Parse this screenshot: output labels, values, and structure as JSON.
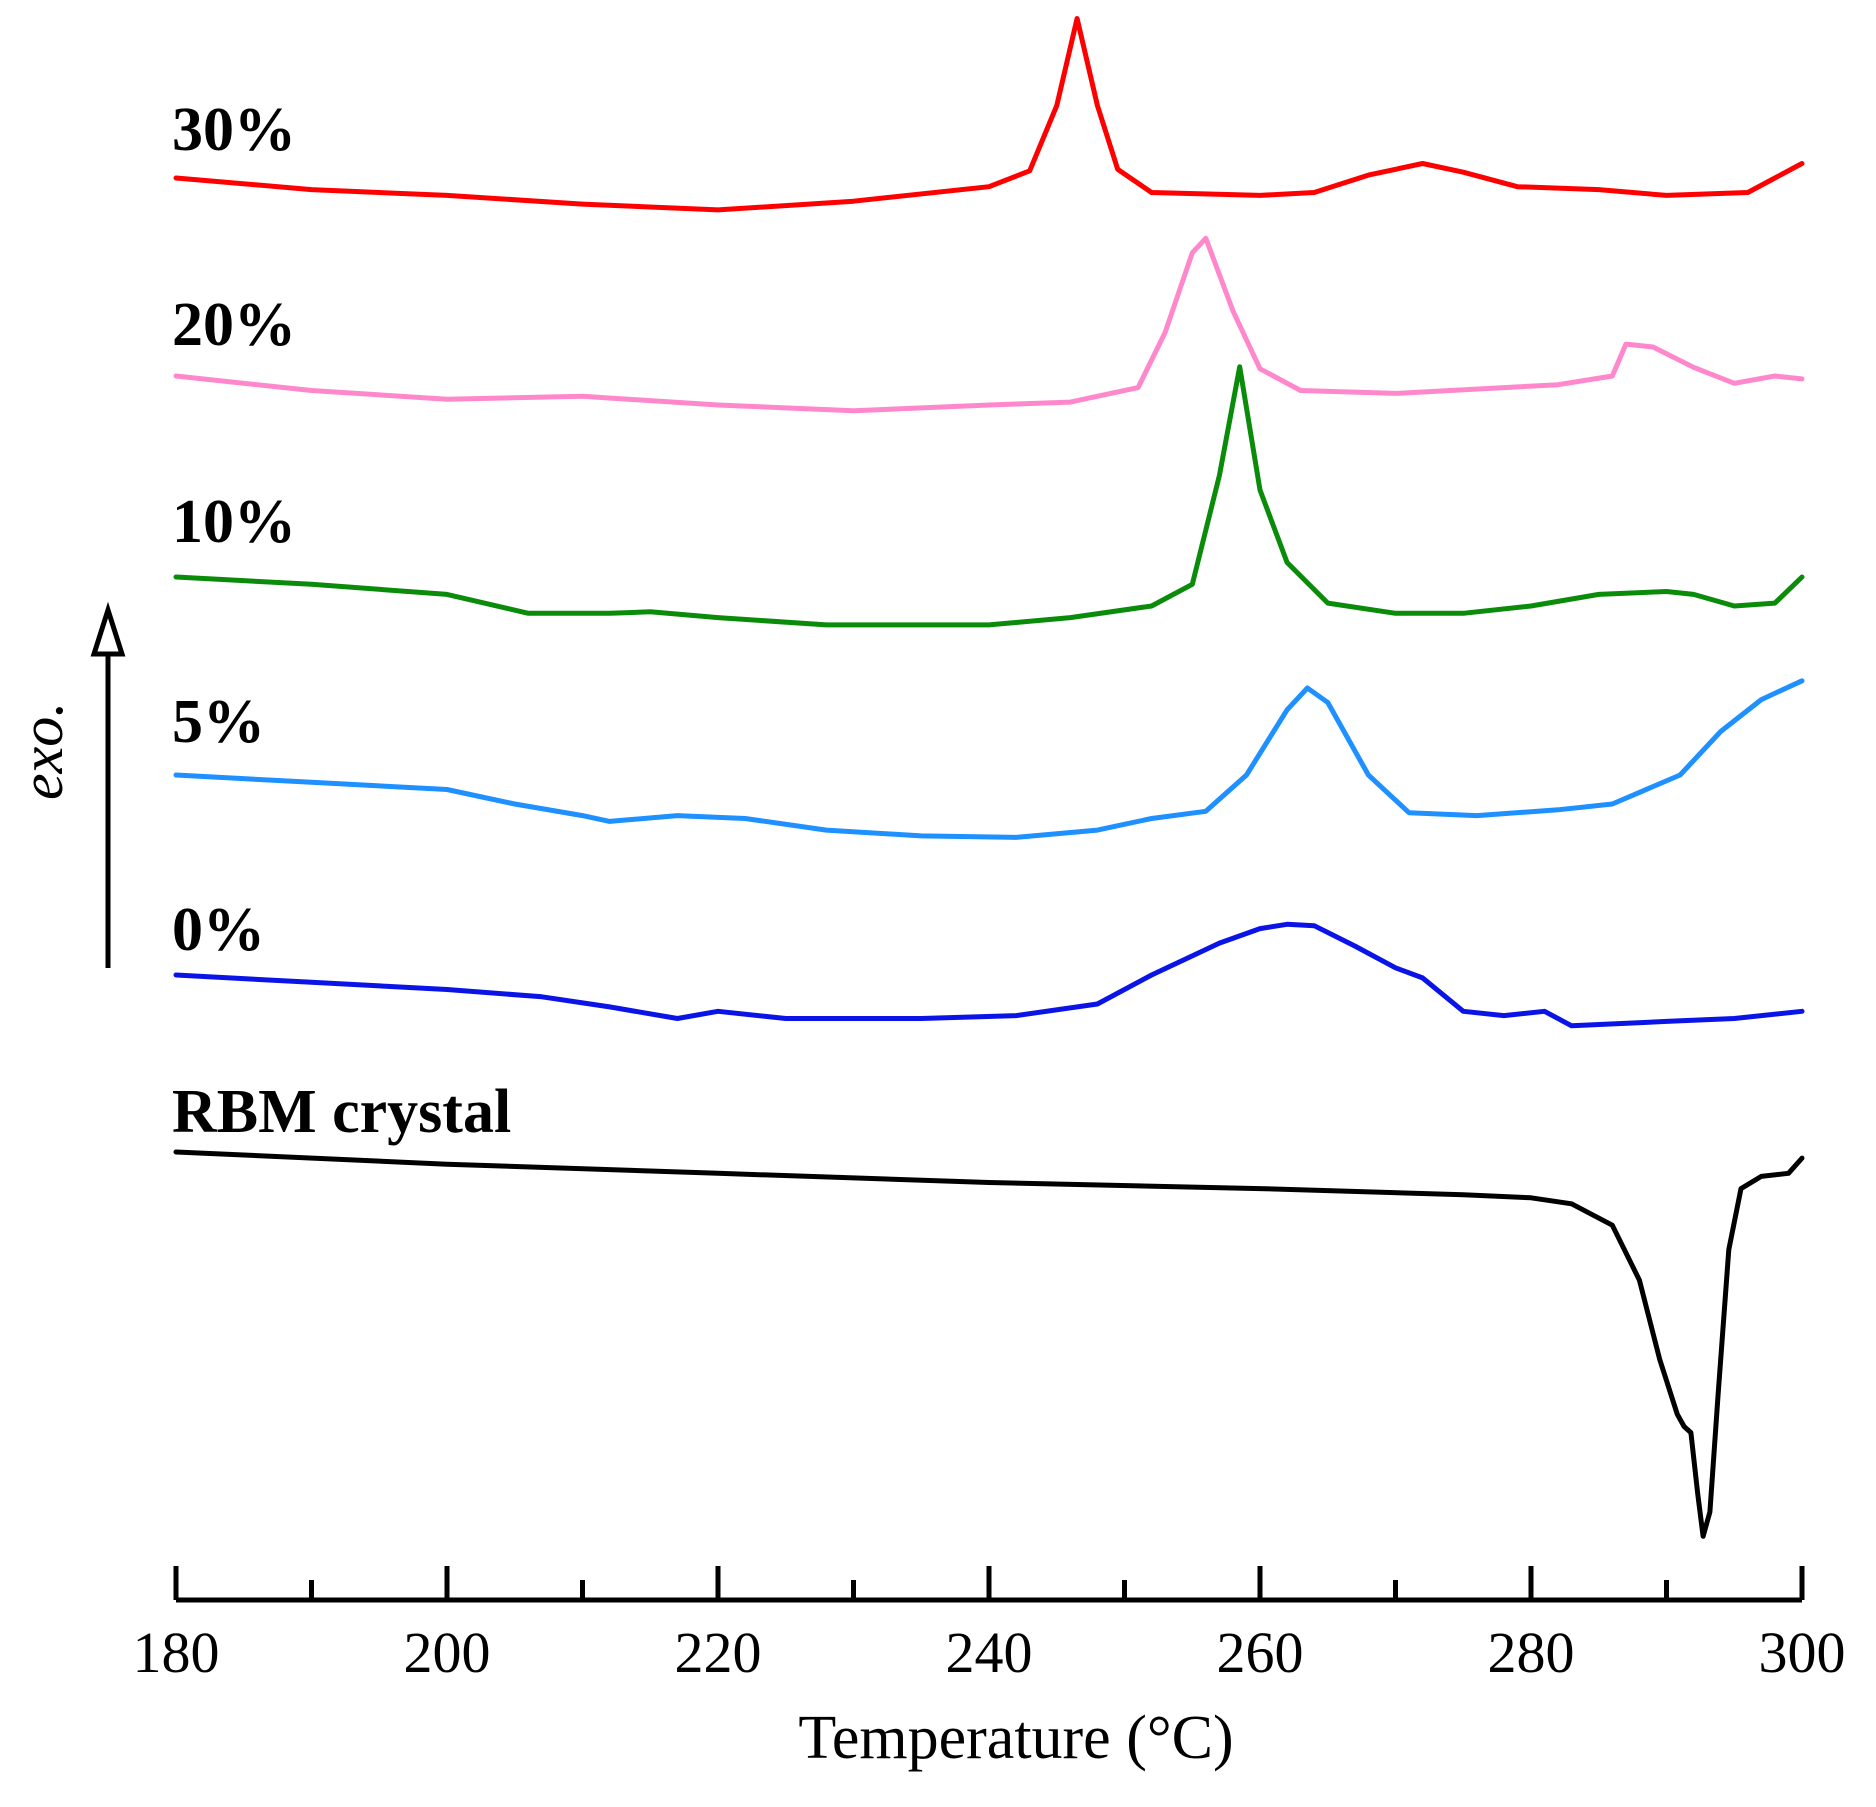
{
  "chart_data": {
    "type": "line",
    "title": "",
    "xlabel": "Temperature (°C)",
    "ylabel": "exo.",
    "xlim": [
      180,
      300
    ],
    "x_ticks_major": [
      180,
      200,
      220,
      240,
      260,
      280,
      300
    ],
    "x_ticks_minor": [
      190,
      210,
      230,
      250,
      270,
      290
    ],
    "x_tick_labels": [
      "180",
      "200",
      "220",
      "240",
      "260",
      "280",
      "300"
    ],
    "grid": false,
    "series": [
      {
        "name": "30%",
        "color": "#ff0000",
        "points": [
          [
            180,
            0.0
          ],
          [
            190,
            -0.08
          ],
          [
            200,
            -0.12
          ],
          [
            210,
            -0.18
          ],
          [
            220,
            -0.22
          ],
          [
            230,
            -0.16
          ],
          [
            240,
            -0.06
          ],
          [
            243,
            0.05
          ],
          [
            245,
            0.5
          ],
          [
            246.5,
            1.1
          ],
          [
            248,
            0.5
          ],
          [
            249.5,
            0.06
          ],
          [
            252,
            -0.1
          ],
          [
            260,
            -0.12
          ],
          [
            264,
            -0.1
          ],
          [
            268,
            0.02
          ],
          [
            272,
            0.1
          ],
          [
            275,
            0.04
          ],
          [
            279,
            -0.06
          ],
          [
            285,
            -0.08
          ],
          [
            290,
            -0.12
          ],
          [
            296,
            -0.1
          ],
          [
            298,
            0.0
          ],
          [
            300,
            0.1
          ]
        ]
      },
      {
        "name": "20%",
        "color": "#ff88cc",
        "points": [
          [
            180,
            0.0
          ],
          [
            190,
            -0.1
          ],
          [
            200,
            -0.16
          ],
          [
            210,
            -0.14
          ],
          [
            220,
            -0.2
          ],
          [
            230,
            -0.24
          ],
          [
            240,
            -0.2
          ],
          [
            246,
            -0.18
          ],
          [
            251,
            -0.08
          ],
          [
            253,
            0.3
          ],
          [
            255,
            0.85
          ],
          [
            256,
            0.95
          ],
          [
            258,
            0.45
          ],
          [
            260,
            0.05
          ],
          [
            263,
            -0.1
          ],
          [
            270,
            -0.12
          ],
          [
            278,
            -0.08
          ],
          [
            282,
            -0.06
          ],
          [
            286,
            0.0
          ],
          [
            287,
            0.22
          ],
          [
            289,
            0.2
          ],
          [
            292,
            0.06
          ],
          [
            295,
            -0.05
          ],
          [
            298,
            0.0
          ],
          [
            300,
            -0.02
          ]
        ]
      },
      {
        "name": "10%",
        "color": "#0a8c0a",
        "points": [
          [
            180,
            0.0
          ],
          [
            190,
            -0.05
          ],
          [
            200,
            -0.12
          ],
          [
            206,
            -0.25
          ],
          [
            212,
            -0.25
          ],
          [
            215,
            -0.24
          ],
          [
            220,
            -0.28
          ],
          [
            228,
            -0.33
          ],
          [
            240,
            -0.33
          ],
          [
            246,
            -0.28
          ],
          [
            252,
            -0.2
          ],
          [
            255,
            -0.05
          ],
          [
            257,
            0.7
          ],
          [
            258.5,
            1.45
          ],
          [
            260,
            0.6
          ],
          [
            262,
            0.1
          ],
          [
            265,
            -0.18
          ],
          [
            270,
            -0.25
          ],
          [
            275,
            -0.25
          ],
          [
            280,
            -0.2
          ],
          [
            285,
            -0.12
          ],
          [
            290,
            -0.1
          ],
          [
            292,
            -0.12
          ],
          [
            295,
            -0.2
          ],
          [
            298,
            -0.18
          ],
          [
            300,
            0.0
          ]
        ]
      },
      {
        "name": "5%",
        "color": "#1e90ff",
        "points": [
          [
            180,
            0.0
          ],
          [
            190,
            -0.05
          ],
          [
            200,
            -0.1
          ],
          [
            205,
            -0.2
          ],
          [
            210,
            -0.28
          ],
          [
            212,
            -0.32
          ],
          [
            217,
            -0.28
          ],
          [
            222,
            -0.3
          ],
          [
            228,
            -0.38
          ],
          [
            235,
            -0.42
          ],
          [
            242,
            -0.43
          ],
          [
            248,
            -0.38
          ],
          [
            252,
            -0.3
          ],
          [
            256,
            -0.25
          ],
          [
            259,
            0.0
          ],
          [
            262,
            0.45
          ],
          [
            263.5,
            0.6
          ],
          [
            265,
            0.5
          ],
          [
            268,
            0.0
          ],
          [
            271,
            -0.26
          ],
          [
            276,
            -0.28
          ],
          [
            282,
            -0.24
          ],
          [
            286,
            -0.2
          ],
          [
            288,
            -0.12
          ],
          [
            291,
            0.0
          ],
          [
            294,
            0.3
          ],
          [
            297,
            0.52
          ],
          [
            300,
            0.65
          ]
        ]
      },
      {
        "name": "0%",
        "color": "#0a14e6",
        "points": [
          [
            180,
            0.0
          ],
          [
            190,
            -0.05
          ],
          [
            200,
            -0.1
          ],
          [
            207,
            -0.15
          ],
          [
            212,
            -0.22
          ],
          [
            217,
            -0.3
          ],
          [
            220,
            -0.25
          ],
          [
            225,
            -0.3
          ],
          [
            235,
            -0.3
          ],
          [
            242,
            -0.28
          ],
          [
            248,
            -0.2
          ],
          [
            252,
            0.0
          ],
          [
            257,
            0.22
          ],
          [
            260,
            0.32
          ],
          [
            262,
            0.35
          ],
          [
            264,
            0.34
          ],
          [
            267,
            0.2
          ],
          [
            270,
            0.05
          ],
          [
            272,
            -0.02
          ],
          [
            275,
            -0.25
          ],
          [
            278,
            -0.28
          ],
          [
            281,
            -0.25
          ],
          [
            283,
            -0.35
          ],
          [
            290,
            -0.32
          ],
          [
            295,
            -0.3
          ],
          [
            300,
            -0.25
          ]
        ]
      },
      {
        "name": "RBM crystal",
        "color": "#000000",
        "points": [
          [
            180,
            0.0
          ],
          [
            200,
            -0.2
          ],
          [
            220,
            -0.35
          ],
          [
            240,
            -0.5
          ],
          [
            260,
            -0.6
          ],
          [
            275,
            -0.7
          ],
          [
            280,
            -0.75
          ],
          [
            283,
            -0.85
          ],
          [
            286,
            -1.2
          ],
          [
            288,
            -2.1
          ],
          [
            289.5,
            -3.4
          ],
          [
            290.8,
            -4.3
          ],
          [
            291.3,
            -4.5
          ],
          [
            291.8,
            -4.6
          ],
          [
            292.3,
            -5.6
          ],
          [
            292.7,
            -6.3
          ],
          [
            293.2,
            -5.9
          ],
          [
            293.8,
            -4.0
          ],
          [
            294.6,
            -1.6
          ],
          [
            295.5,
            -0.6
          ],
          [
            297,
            -0.4
          ],
          [
            299,
            -0.35
          ],
          [
            300,
            -0.1
          ]
        ]
      }
    ]
  },
  "labels": {
    "s30": "30%",
    "s20": "20%",
    "s10": "10%",
    "s5": "5%",
    "s0": "0%",
    "rbm": "RBM crystal",
    "exo": "exo.",
    "xaxis": "Temperature (°C)"
  }
}
